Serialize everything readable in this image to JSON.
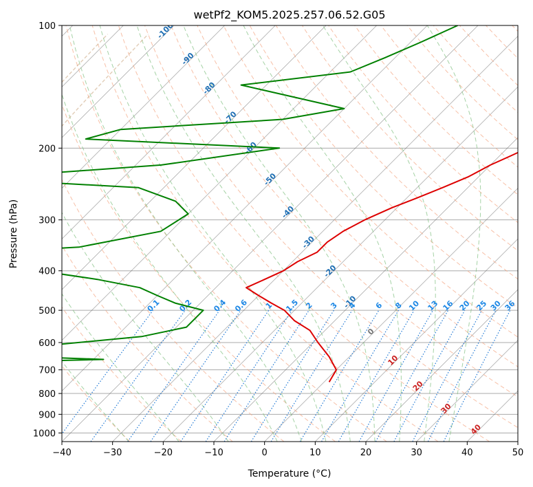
{
  "chart_data": {
    "type": "line",
    "title": "wetPf2_KOM5.2025.257.06.52.G05",
    "xlabel": "Temperature (°C)",
    "ylabel": "Pressure (hPa)",
    "xlim": [
      -40,
      50
    ],
    "ylim": [
      1050,
      100
    ],
    "y_scale": "log",
    "grid": true,
    "x_ticks": [
      -40,
      -30,
      -20,
      -10,
      0,
      10,
      20,
      30,
      40,
      50
    ],
    "y_ticks": [
      100,
      200,
      300,
      400,
      500,
      600,
      700,
      800,
      900,
      1000
    ],
    "skew": 45,
    "series": [
      {
        "color": "#dd0000",
        "points": [
          [
            8,
            100
          ],
          [
            7,
            110
          ],
          [
            6,
            120
          ],
          [
            5.5,
            130
          ],
          [
            5,
            140
          ],
          [
            2.5,
            150
          ],
          [
            0,
            160
          ],
          [
            -1,
            170
          ],
          [
            -2,
            180
          ],
          [
            -4,
            190
          ],
          [
            -6,
            200
          ],
          [
            -8,
            210
          ],
          [
            -10,
            220
          ],
          [
            -12,
            235
          ],
          [
            -15,
            250
          ],
          [
            -18,
            265
          ],
          [
            -21,
            280
          ],
          [
            -24,
            300
          ],
          [
            -26,
            320
          ],
          [
            -27,
            340
          ],
          [
            -27,
            360
          ],
          [
            -29,
            380
          ],
          [
            -30,
            400
          ],
          [
            -32,
            420
          ],
          [
            -34,
            440
          ],
          [
            -30,
            460
          ],
          [
            -26,
            480
          ],
          [
            -22,
            500
          ],
          [
            -18,
            530
          ],
          [
            -13,
            560
          ],
          [
            -9,
            600
          ],
          [
            -4,
            650
          ],
          [
            0,
            700
          ],
          [
            1,
            750
          ]
        ]
      },
      {
        "color": "#008000",
        "points": [
          [
            -44,
            100
          ],
          [
            -48,
            110
          ],
          [
            -52,
            120
          ],
          [
            -56,
            130
          ],
          [
            -75,
            140
          ],
          [
            -50,
            160
          ],
          [
            -60,
            170
          ],
          [
            -90,
            180
          ],
          [
            -95,
            190
          ],
          [
            -55,
            200
          ],
          [
            -75,
            220
          ],
          [
            -95,
            230
          ],
          [
            -102,
            240
          ],
          [
            -75,
            250
          ],
          [
            -65,
            270
          ],
          [
            -60,
            290
          ],
          [
            -62,
            320
          ],
          [
            -75,
            350
          ],
          [
            -108,
            370
          ],
          [
            -85,
            390
          ],
          [
            -65,
            420
          ],
          [
            -55,
            440
          ],
          [
            -50,
            460
          ],
          [
            -45,
            480
          ],
          [
            -38,
            500
          ],
          [
            -38,
            520
          ],
          [
            -38,
            550
          ],
          [
            -45,
            580
          ],
          [
            -62,
            610
          ],
          [
            -80,
            640
          ],
          [
            -48,
            660
          ],
          [
            -88,
            680
          ],
          [
            -80,
            720
          ],
          [
            -63,
            760
          ]
        ]
      }
    ],
    "dry_adiabats_c": [
      -30,
      -20,
      -10,
      0,
      10,
      20,
      30,
      40,
      50,
      60,
      70,
      80,
      90,
      100,
      110,
      120,
      130,
      140,
      150,
      160,
      170,
      180,
      190
    ],
    "moist_adiabats_c": [
      -30,
      -20,
      -10,
      0,
      5,
      10,
      15,
      20,
      25,
      30,
      35
    ],
    "isotherm_labels": [
      {
        "text": "-100",
        "t": -100,
        "p": 104
      },
      {
        "text": "-90",
        "t": -90,
        "p": 122
      },
      {
        "text": "-80",
        "t": -80,
        "p": 144
      },
      {
        "text": "-70",
        "t": -70,
        "p": 170
      },
      {
        "text": "-60",
        "t": -60,
        "p": 202
      },
      {
        "text": "-50",
        "t": -50,
        "p": 241
      },
      {
        "text": "-40",
        "t": -40,
        "p": 290
      },
      {
        "text": "-30",
        "t": -30,
        "p": 344
      },
      {
        "text": "-20",
        "t": -20,
        "p": 405
      },
      {
        "text": "-10",
        "t": -10,
        "p": 482
      }
    ],
    "mixing_ratio_labels": [
      "0.1",
      "0.2",
      "0.4",
      "0.6",
      "1",
      "1.5",
      "2",
      "3",
      "4",
      "6",
      "8",
      "10",
      "13",
      "16",
      "20",
      "25",
      "30",
      "36"
    ],
    "mixing_ratio_values": [
      0.1,
      0.2,
      0.4,
      0.6,
      1,
      1.5,
      2,
      3,
      4,
      6,
      8,
      10,
      13,
      16,
      20,
      25,
      30,
      36
    ],
    "skewed_t_labels": [
      {
        "text": "0",
        "t": 0,
        "p": 570,
        "color": "#777777"
      },
      {
        "text": "10",
        "t": 10,
        "p": 670,
        "color": "#cc2222"
      },
      {
        "text": "20",
        "t": 20,
        "p": 775,
        "color": "#cc2222"
      },
      {
        "text": "30",
        "t": 30,
        "p": 880,
        "color": "#cc2222"
      },
      {
        "text": "40",
        "t": 40,
        "p": 990,
        "color": "#cc2222"
      }
    ],
    "colors": {
      "dry_adiabat": "#f4a582",
      "moist_adiabat": "#7fbf7f",
      "mixing_ratio": "#1f78d4",
      "isotherm": "#555555",
      "isotherm_label": "#1f6fb4",
      "mixing_label": "#1e88e5",
      "grid": "#aaaaaa",
      "ghost_curve": "#c8a27a"
    }
  }
}
